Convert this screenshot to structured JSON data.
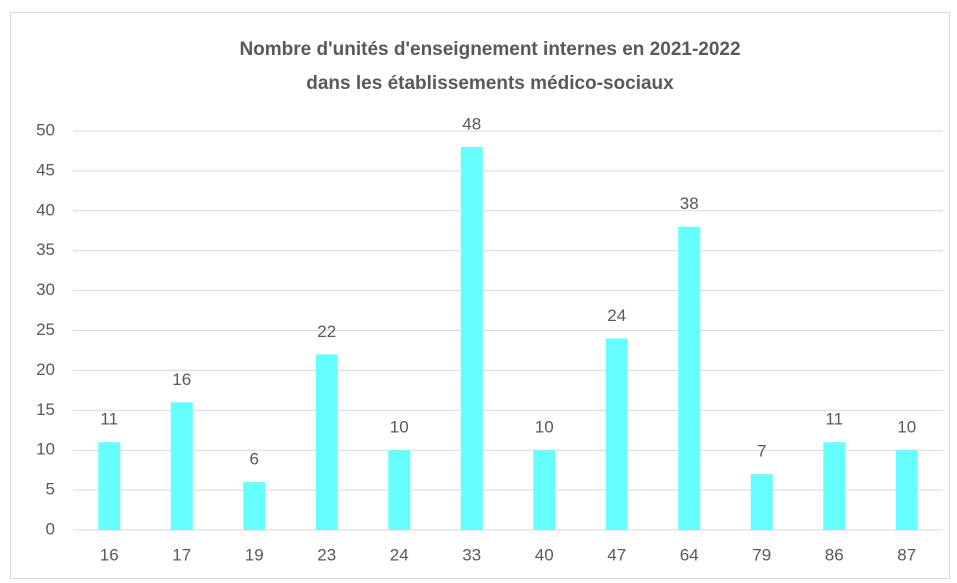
{
  "chart_data": {
    "type": "bar",
    "title": [
      "Nombre d'unités d'enseignement internes en 2021-2022",
      "dans les établissements médico-sociaux"
    ],
    "categories": [
      "16",
      "17",
      "19",
      "23",
      "24",
      "33",
      "40",
      "47",
      "64",
      "79",
      "86",
      "87"
    ],
    "values": [
      11,
      16,
      6,
      22,
      10,
      48,
      10,
      24,
      38,
      7,
      11,
      10
    ],
    "color": "#66ffff",
    "ylim": [
      0,
      50
    ],
    "yticks": [
      0,
      5,
      10,
      15,
      20,
      25,
      30,
      35,
      40,
      45,
      50
    ],
    "grid": true
  }
}
